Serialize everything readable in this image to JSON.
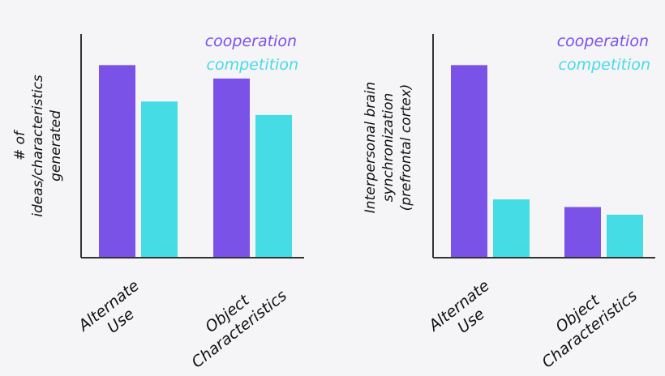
{
  "colors": {
    "cooperation": "#7b52e8",
    "competition": "#45dce5",
    "axis": "#333333",
    "text": "#111111",
    "background": "#f5f5f7"
  },
  "chart_data": [
    {
      "type": "bar",
      "categories": [
        [
          "Alternate",
          "Use"
        ],
        [
          "Object",
          "Characteristics"
        ]
      ],
      "series": [
        {
          "name": "cooperation",
          "values": [
            100,
            93
          ]
        },
        {
          "name": "competition",
          "values": [
            81,
            74
          ]
        }
      ],
      "ylabel": [
        "# of",
        "ideas/characteristics",
        "generated"
      ],
      "xlabel": "",
      "ylim": [
        0,
        120
      ],
      "legend": "top-right",
      "grid": false
    },
    {
      "type": "bar",
      "categories": [
        [
          "Alternate",
          "Use"
        ],
        [
          "Object",
          "Characteristics"
        ]
      ],
      "series": [
        {
          "name": "cooperation",
          "values": [
            100,
            26
          ]
        },
        {
          "name": "competition",
          "values": [
            30,
            22
          ]
        }
      ],
      "ylabel": [
        "Interpersonal brain",
        "synchronization",
        "(prefrontal cortex)"
      ],
      "xlabel": "",
      "ylim": [
        0,
        120
      ],
      "legend": "top-right",
      "grid": false
    }
  ]
}
